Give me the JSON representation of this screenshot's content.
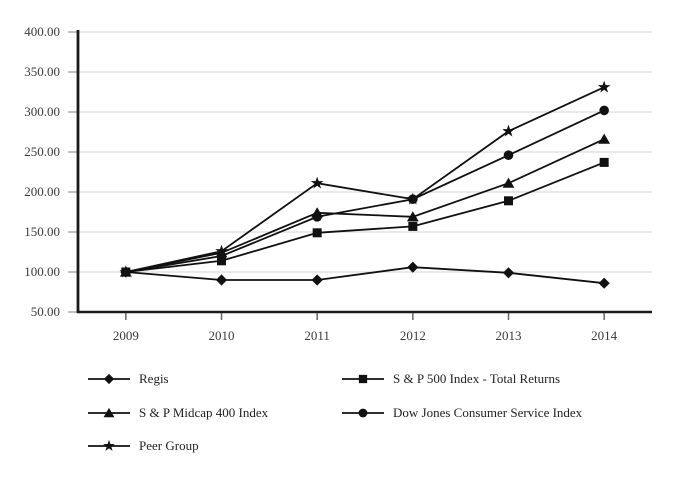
{
  "chart_data": {
    "type": "line",
    "title": "",
    "xlabel": "",
    "ylabel": "",
    "categories": [
      "2009",
      "2010",
      "2011",
      "2012",
      "2013",
      "2014"
    ],
    "series": [
      {
        "name": "Regis",
        "marker": "diamond",
        "values": [
          100,
          90,
          90,
          106,
          99,
          86
        ]
      },
      {
        "name": "S & P 500 Index - Total Returns",
        "marker": "square",
        "values": [
          100,
          114,
          149,
          157,
          189,
          237
        ]
      },
      {
        "name": "S & P Midcap 400 Index",
        "marker": "triangle",
        "values": [
          100,
          124,
          174,
          169,
          211,
          266
        ]
      },
      {
        "name": "Dow Jones Consumer Service Index",
        "marker": "circle",
        "values": [
          100,
          120,
          169,
          191,
          246,
          302
        ]
      },
      {
        "name": "Peer Group",
        "marker": "star",
        "values": [
          100,
          126,
          211,
          191,
          276,
          331
        ]
      }
    ],
    "ylim": [
      50,
      400
    ],
    "ytick_step": 50,
    "y_tick_labels": [
      "400.00",
      "350.00",
      "300.00",
      "250.00",
      "200.00",
      "150.00",
      "100.00",
      "50.00"
    ],
    "x_tick_labels": [
      "2009",
      "2010",
      "2011",
      "2012",
      "2013",
      "2014"
    ],
    "grid": true,
    "legend_position": "bottom",
    "legend_columns": 2,
    "colors": {
      "series_line": "#111111",
      "marker_fill": "#111111",
      "grid": "#dcdcdc",
      "axis": "#1a1a1a",
      "y_tick": "#b3b3b3",
      "x_tick": "#666666",
      "label_text": "#3a3a3a",
      "background": "#ffffff"
    }
  }
}
